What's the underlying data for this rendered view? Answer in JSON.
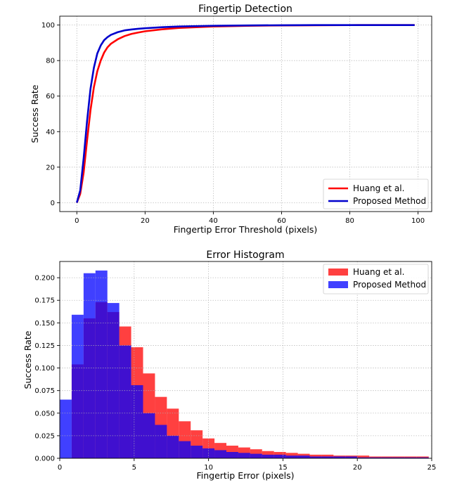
{
  "chart_data": [
    {
      "type": "line",
      "title": "Fingertip Detection",
      "xlabel": "Fingertip Error Threshold (pixels)",
      "ylabel": "Success Rate",
      "xlim": [
        -5,
        104
      ],
      "ylim": [
        -5,
        105
      ],
      "xticks": [
        0,
        20,
        40,
        60,
        80,
        100
      ],
      "yticks": [
        0,
        20,
        40,
        60,
        80,
        100
      ],
      "grid": true,
      "legend_position": "lower-right",
      "series": [
        {
          "name": "Huang et al.",
          "color": "#ff0000",
          "x": [
            0,
            1,
            2,
            3,
            4,
            5,
            6,
            7,
            8,
            9,
            10,
            12,
            14,
            16,
            18,
            20,
            25,
            30,
            40,
            50,
            60,
            70,
            80,
            90,
            99
          ],
          "y": [
            0,
            5,
            17,
            35,
            52,
            65,
            74,
            80,
            84.5,
            87.5,
            89.5,
            92,
            93.8,
            95,
            95.8,
            96.5,
            97.6,
            98.4,
            99.2,
            99.6,
            99.8,
            99.9,
            99.95,
            100,
            100
          ]
        },
        {
          "name": "Proposed Method",
          "color": "#0000cc",
          "x": [
            0,
            1,
            2,
            3,
            4,
            5,
            6,
            7,
            8,
            9,
            10,
            12,
            14,
            16,
            18,
            20,
            25,
            30,
            40,
            50,
            60,
            70,
            80,
            90,
            99
          ],
          "y": [
            0,
            7,
            25,
            46,
            64,
            76,
            84,
            88.5,
            91.5,
            93.2,
            94.5,
            96,
            97,
            97.5,
            97.9,
            98.2,
            98.8,
            99.2,
            99.6,
            99.8,
            99.9,
            100,
            100,
            100,
            100
          ]
        }
      ]
    },
    {
      "type": "histogram",
      "title": "Error Histogram",
      "xlabel": "Fingertip Error (pixels)",
      "ylabel": "Success Rate",
      "xlim": [
        0,
        25
      ],
      "ylim": [
        0,
        0.218
      ],
      "xticks": [
        0,
        5,
        10,
        15,
        20,
        25
      ],
      "yticks": [
        "0.000",
        "0.025",
        "0.050",
        "0.075",
        "0.100",
        "0.125",
        "0.150",
        "0.175",
        "0.200"
      ],
      "grid": true,
      "legend_position": "upper-right",
      "bin_width": 0.8,
      "series": [
        {
          "name": "Huang et al.",
          "color": "#ff0000",
          "bin_start": 0.8,
          "values": [
            0.104,
            0.155,
            0.173,
            0.162,
            0.146,
            0.123,
            0.094,
            0.068,
            0.055,
            0.041,
            0.031,
            0.022,
            0.017,
            0.014,
            0.012,
            0.01,
            0.008,
            0.007,
            0.006,
            0.005,
            0.004,
            0.004,
            0.003,
            0.003,
            0.003,
            0.002,
            0.002,
            0.002,
            0.002,
            0.002
          ]
        },
        {
          "name": "Proposed Method",
          "color": "#0000ff",
          "bin_start": 0.0,
          "values": [
            0.065,
            0.159,
            0.205,
            0.208,
            0.172,
            0.125,
            0.081,
            0.05,
            0.037,
            0.025,
            0.019,
            0.014,
            0.011,
            0.009,
            0.007,
            0.006,
            0.005,
            0.004,
            0.004,
            0.003,
            0.003,
            0.002,
            0.002,
            0.002,
            0.002,
            0.001,
            0.001,
            0.001,
            0.001,
            0.001,
            0.001
          ]
        }
      ]
    }
  ]
}
